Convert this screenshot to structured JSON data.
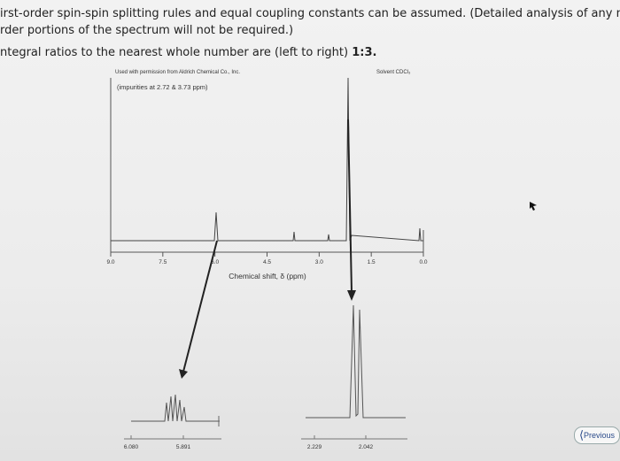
{
  "text": {
    "line1": "irst-order spin-spin splitting rules and equal coupling constants can be assumed. (Detailed analysis of any non-f",
    "line2": "rder portions of the spectrum will not be required.)",
    "line3": "ntegral ratios to the nearest whole number are (left to right) ",
    "line3_bold": "1:3."
  },
  "figure": {
    "credit": "Used with permission from Aldrich Chemical Co., Inc.",
    "solvent": "Solvent CDCl₃",
    "impurities": "(impurities at 2.72 & 3.73 ppm)",
    "axis_ticks": [
      "9.0",
      "7.5",
      "6.0",
      "4.5",
      "3.0",
      "1.5",
      "0.0"
    ],
    "axis_label": "Chemical shift, δ (ppm)",
    "left_inset_ticks": [
      "6.080",
      "5.891"
    ],
    "right_inset_ticks": [
      "2.229",
      "2.042"
    ]
  },
  "button": "Previous"
}
